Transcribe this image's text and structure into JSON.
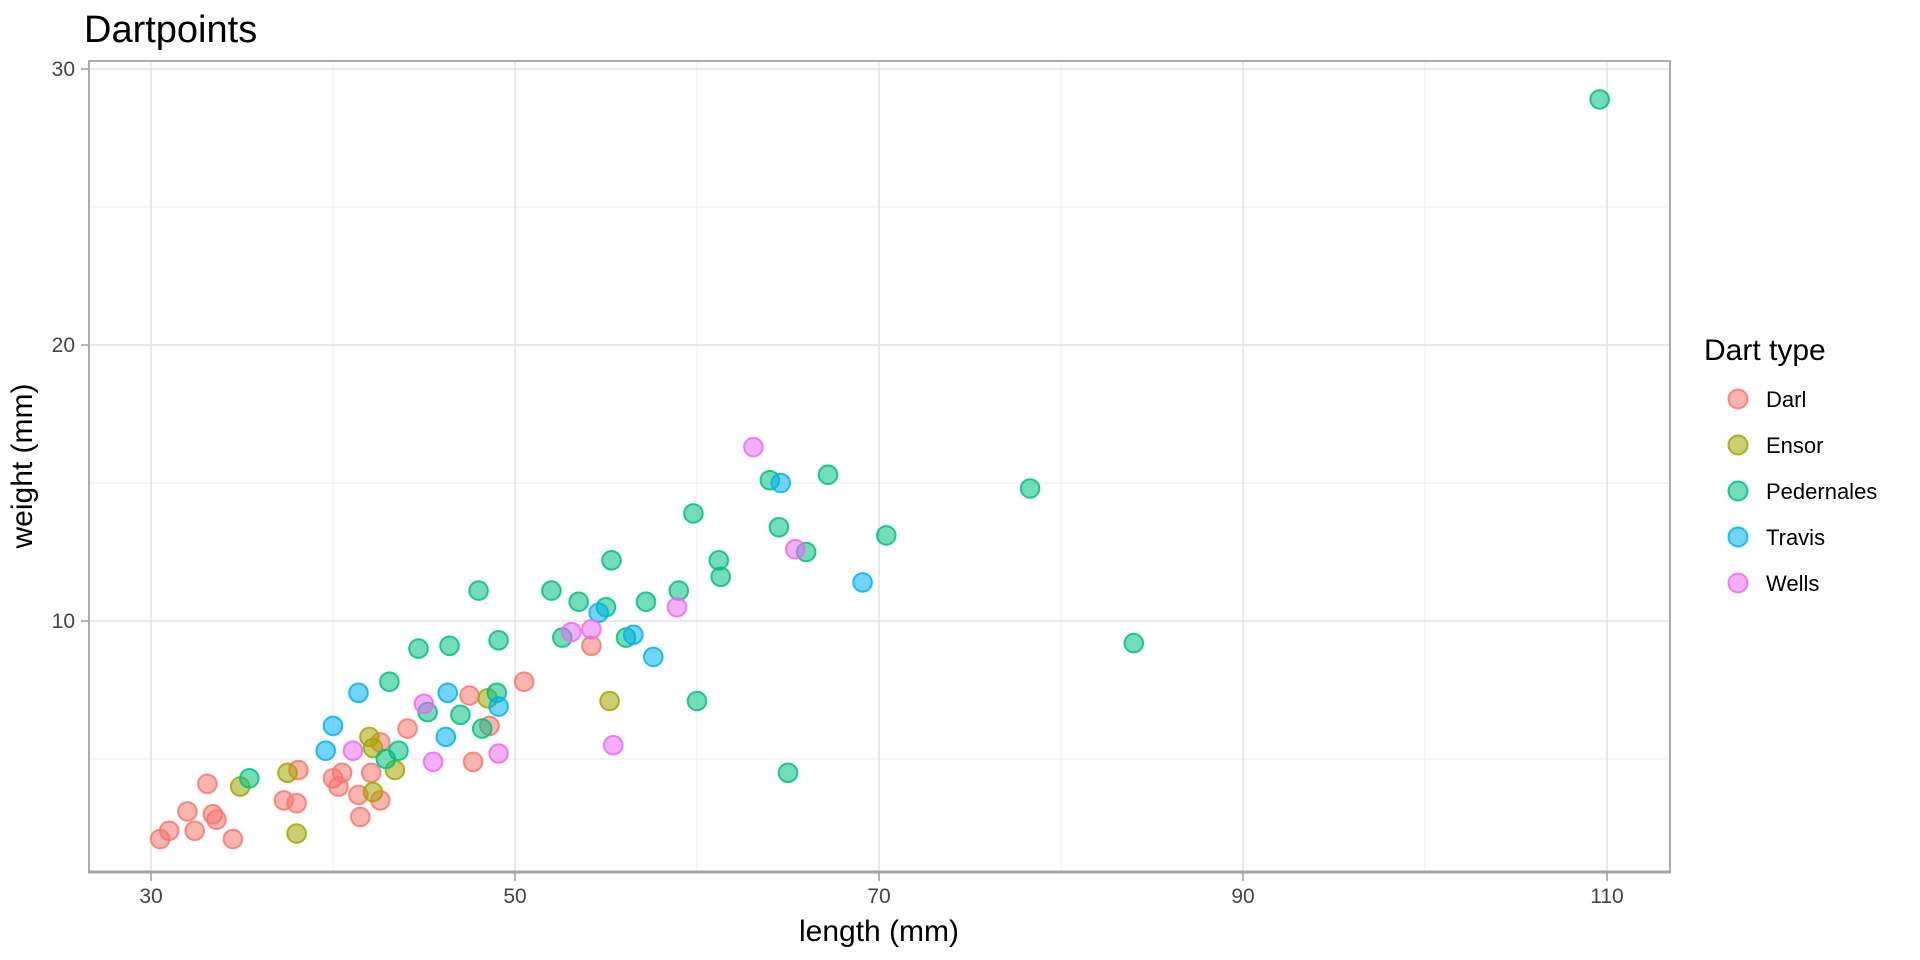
{
  "title": "Dartpoints",
  "axes": {
    "x": {
      "label": "length (mm)",
      "major_ticks": [
        30,
        50,
        70,
        90,
        110
      ],
      "minor_gridlines": [
        40,
        60,
        80,
        100
      ]
    },
    "y": {
      "label": "weight (mm)",
      "major_ticks": [
        10,
        20,
        30
      ],
      "minor_gridlines": [
        5,
        15,
        25
      ]
    }
  },
  "legend": {
    "title": "Dart type",
    "items": [
      {
        "label": "Darl",
        "color": "#F8766D"
      },
      {
        "label": "Ensor",
        "color": "#A3A500"
      },
      {
        "label": "Pedernales",
        "color": "#00BF7D"
      },
      {
        "label": "Travis",
        "color": "#00B0F6"
      },
      {
        "label": "Wells",
        "color": "#E76BF3"
      }
    ]
  },
  "colors": {
    "background": "#FFFFFF",
    "grid_major": "#E2E2E2",
    "grid_minor": "#EFEFEF",
    "panel_border": "#ACACAC",
    "axis_line": "#A4A4A4",
    "tick_mark": "#ABABAB",
    "tick_label": "#444444",
    "text": "#000000"
  },
  "chart_data": {
    "type": "scatter",
    "title": "Dartpoints",
    "xlabel": "length (mm)",
    "ylabel": "weight (mm)",
    "xlim": [
      26.6,
      113.4
    ],
    "ylim": [
      0.9,
      30.3
    ],
    "grid": true,
    "legend_position": "right",
    "point_alpha": 0.55,
    "series": [
      {
        "name": "Darl",
        "color": "#F8766D",
        "points": [
          [
            30.5,
            2.1
          ],
          [
            31.0,
            2.4
          ],
          [
            32.0,
            3.1
          ],
          [
            32.4,
            2.4
          ],
          [
            33.1,
            4.1
          ],
          [
            33.4,
            3.0
          ],
          [
            33.6,
            2.8
          ],
          [
            34.5,
            2.1
          ],
          [
            37.3,
            3.5
          ],
          [
            38.0,
            3.4
          ],
          [
            38.1,
            4.6
          ],
          [
            40.0,
            4.3
          ],
          [
            40.3,
            4.0
          ],
          [
            40.5,
            4.5
          ],
          [
            41.4,
            3.7
          ],
          [
            41.5,
            2.9
          ],
          [
            42.1,
            4.5
          ],
          [
            42.6,
            3.5
          ],
          [
            42.6,
            5.6
          ],
          [
            44.1,
            6.1
          ],
          [
            47.5,
            7.3
          ],
          [
            47.7,
            4.9
          ],
          [
            48.6,
            6.2
          ],
          [
            50.5,
            7.8
          ],
          [
            54.2,
            9.1
          ]
        ]
      },
      {
        "name": "Ensor",
        "color": "#A3A500",
        "points": [
          [
            34.9,
            4.0
          ],
          [
            37.5,
            4.5
          ],
          [
            38.0,
            2.3
          ],
          [
            42.0,
            5.8
          ],
          [
            42.2,
            3.8
          ],
          [
            42.2,
            5.4
          ],
          [
            43.4,
            4.6
          ],
          [
            48.5,
            7.2
          ],
          [
            55.2,
            7.1
          ]
        ]
      },
      {
        "name": "Pedernales",
        "color": "#00BF7D",
        "points": [
          [
            35.4,
            4.3
          ],
          [
            42.9,
            5.0
          ],
          [
            43.1,
            7.8
          ],
          [
            43.6,
            5.3
          ],
          [
            44.7,
            9.0
          ],
          [
            45.2,
            6.7
          ],
          [
            46.4,
            9.1
          ],
          [
            47.0,
            6.6
          ],
          [
            48.0,
            11.1
          ],
          [
            48.2,
            6.1
          ],
          [
            49.0,
            7.4
          ],
          [
            49.1,
            9.3
          ],
          [
            52.0,
            11.1
          ],
          [
            52.6,
            9.4
          ],
          [
            53.5,
            10.7
          ],
          [
            55.0,
            10.5
          ],
          [
            55.3,
            12.2
          ],
          [
            56.1,
            9.4
          ],
          [
            57.2,
            10.7
          ],
          [
            59.0,
            11.1
          ],
          [
            59.8,
            13.9
          ],
          [
            60.0,
            7.1
          ],
          [
            61.2,
            12.2
          ],
          [
            61.3,
            11.6
          ],
          [
            64.0,
            15.1
          ],
          [
            64.5,
            13.4
          ],
          [
            65.0,
            4.5
          ],
          [
            66.0,
            12.5
          ],
          [
            67.2,
            15.3
          ],
          [
            70.4,
            13.1
          ],
          [
            78.3,
            14.8
          ],
          [
            84.0,
            9.2
          ],
          [
            109.6,
            28.9
          ]
        ]
      },
      {
        "name": "Travis",
        "color": "#00B0F6",
        "points": [
          [
            39.6,
            5.3
          ],
          [
            40.0,
            6.2
          ],
          [
            41.4,
            7.4
          ],
          [
            46.2,
            5.8
          ],
          [
            46.3,
            7.4
          ],
          [
            49.1,
            6.9
          ],
          [
            54.6,
            10.3
          ],
          [
            56.5,
            9.5
          ],
          [
            57.6,
            8.7
          ],
          [
            64.6,
            15.0
          ],
          [
            69.1,
            11.4
          ]
        ]
      },
      {
        "name": "Wells",
        "color": "#E76BF3",
        "points": [
          [
            41.1,
            5.3
          ],
          [
            45.0,
            7.0
          ],
          [
            45.5,
            4.9
          ],
          [
            49.1,
            5.2
          ],
          [
            53.1,
            9.6
          ],
          [
            54.2,
            9.7
          ],
          [
            55.4,
            5.5
          ],
          [
            58.9,
            10.5
          ],
          [
            63.1,
            16.3
          ],
          [
            65.4,
            12.6
          ]
        ]
      }
    ]
  }
}
